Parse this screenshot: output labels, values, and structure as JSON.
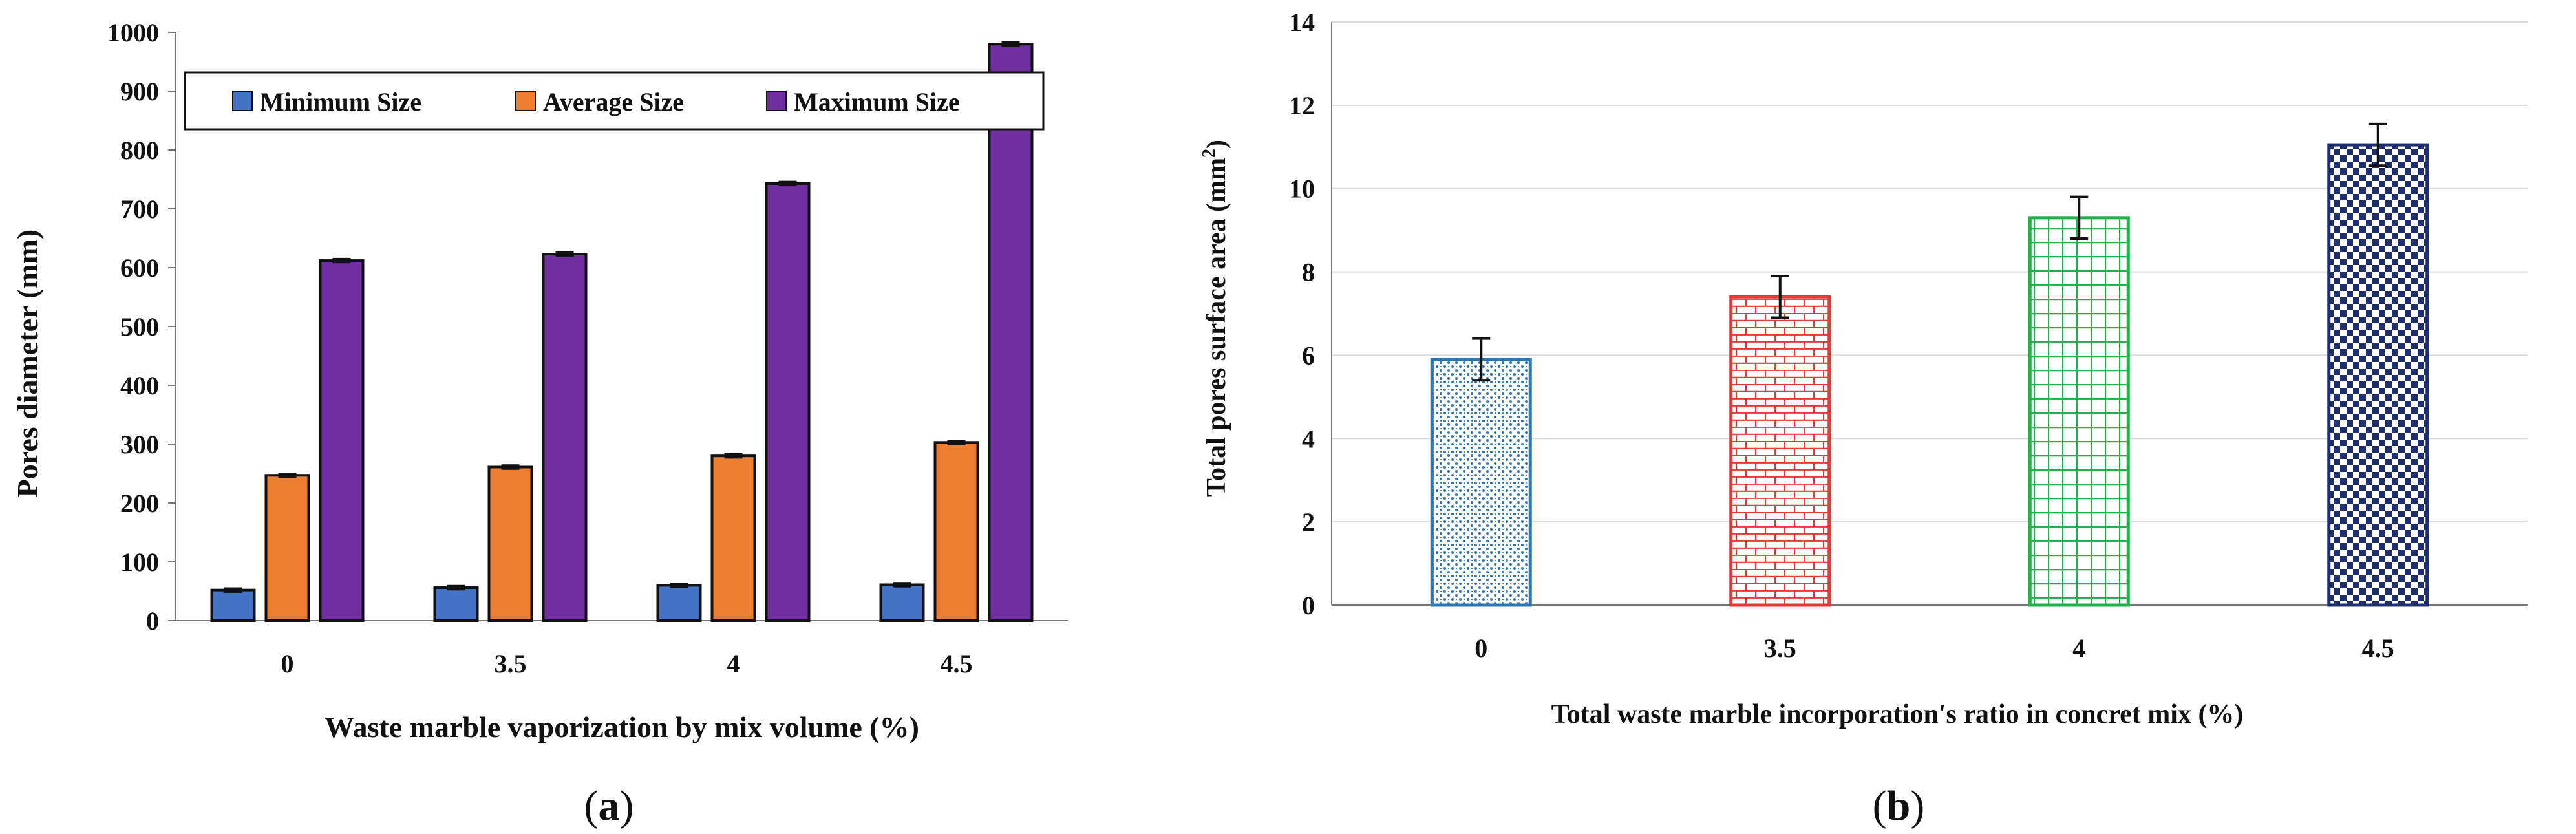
{
  "chart_data": [
    {
      "type": "bar",
      "panel_label": "a",
      "categories": [
        "0",
        "3.5",
        "4",
        "4.5"
      ],
      "series": [
        {
          "name": "Minimum Size",
          "color": "#4472C4",
          "values": [
            52,
            56,
            60,
            61
          ],
          "errors": [
            3,
            3,
            3,
            3
          ]
        },
        {
          "name": "Average Size",
          "color": "#ED7D31",
          "values": [
            247,
            261,
            280,
            303
          ],
          "errors": [
            3,
            3,
            3,
            3
          ]
        },
        {
          "name": "Maximum Size",
          "color": "#7030A0",
          "values": [
            612,
            623,
            743,
            980
          ],
          "errors": [
            3,
            3,
            3,
            3
          ]
        }
      ],
      "xlabel": "Waste marble vaporization by mix volume (%)",
      "ylabel": "Pores diameter (mm)",
      "ylim": [
        0,
        1000
      ],
      "yticks": [
        0,
        100,
        200,
        300,
        400,
        500,
        600,
        700,
        800,
        900,
        1000
      ],
      "legend_position": "top"
    },
    {
      "type": "bar",
      "panel_label": "b",
      "categories": [
        "0",
        "3.5",
        "4",
        "4.5"
      ],
      "values": [
        5.9,
        7.4,
        9.3,
        11.05
      ],
      "errors": [
        0.5,
        0.5,
        0.5,
        0.5
      ],
      "colors": [
        "#2E75B6",
        "#E53935",
        "#22B14C",
        "#1F2F6E"
      ],
      "patterns": [
        "dots",
        "bricks",
        "grid",
        "checker"
      ],
      "xlabel": "Total waste marble incorporation's ratio in concret mix (%)",
      "ylabel_main": "Total pores surface area (mm",
      "ylabel_sup": "2",
      "ylabel_end": ")",
      "ylim": [
        0,
        14
      ],
      "yticks": [
        0,
        2,
        4,
        6,
        8,
        10,
        12,
        14
      ]
    }
  ]
}
